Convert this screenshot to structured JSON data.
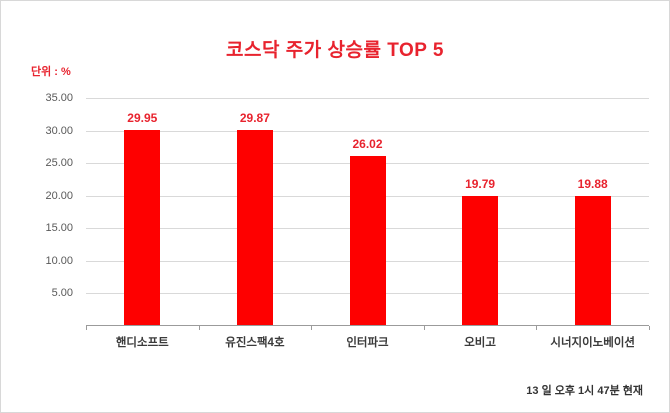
{
  "chart": {
    "title": "코스닥 주가 상승률 TOP 5",
    "unit_label": "단위 : %",
    "footer": "13 일 오후 1시 47분 현재"
  },
  "colors": {
    "bar": "#fe0000",
    "accent_red": "#e8232e",
    "grid": "#d9d9d9",
    "axis": "#9b9b9b"
  },
  "chart_data": {
    "type": "bar",
    "title": "코스닥 주가 상승률 TOP 5",
    "categories": [
      "핸디소프트",
      "유진스팩4호",
      "인터파크",
      "오비고",
      "시너지이노베이션"
    ],
    "values": [
      29.95,
      29.87,
      26.02,
      19.79,
      19.88
    ],
    "value_labels": [
      "29.95",
      "29.87",
      "26.02",
      "19.79",
      "19.88"
    ],
    "unit": "%",
    "ylim": [
      0,
      35
    ],
    "ytick_step": 5,
    "ytick_labels": [
      "5.00",
      "10.00",
      "15.00",
      "20.00",
      "25.00",
      "30.00",
      "35.00"
    ],
    "grid": true,
    "legend_position": "none",
    "annotation": "13 일 오후 1시 47분 현재"
  }
}
